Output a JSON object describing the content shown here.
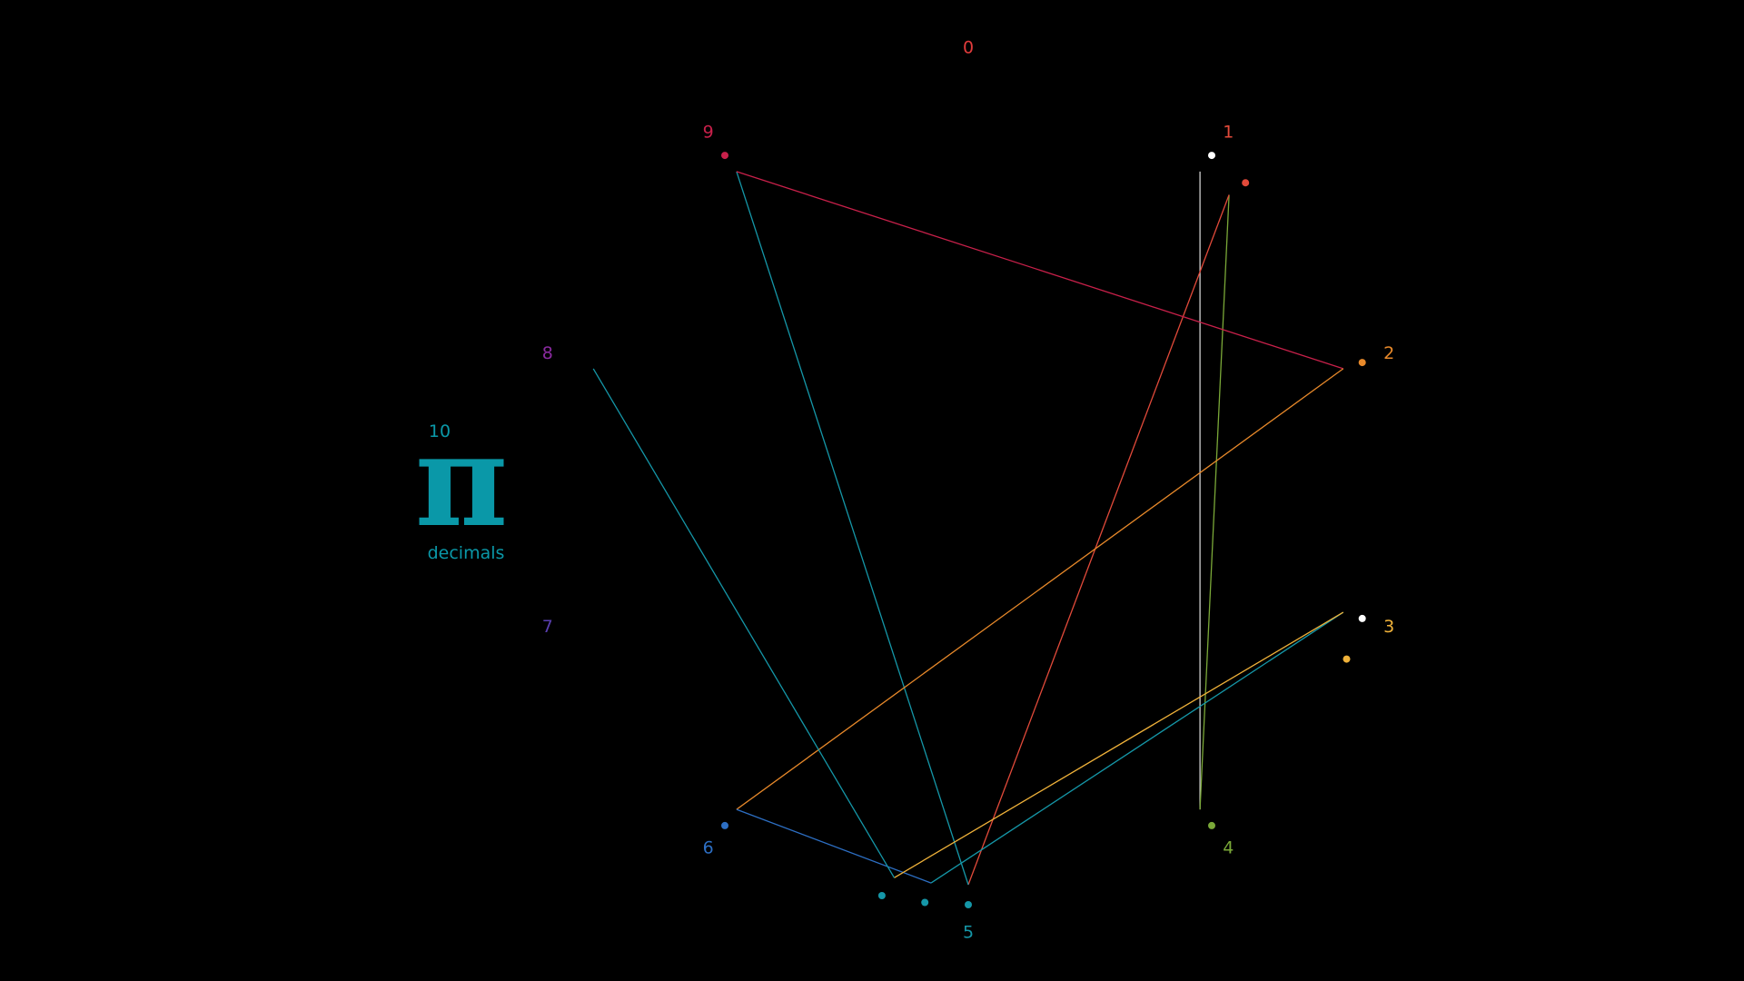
{
  "digit_labels": [
    {
      "text": "0",
      "color": "#e23b3b"
    },
    {
      "text": "1",
      "color": "#e24a3a"
    },
    {
      "text": "2",
      "color": "#e8892a"
    },
    {
      "text": "3",
      "color": "#f0b23a"
    },
    {
      "text": "4",
      "color": "#7aa838"
    },
    {
      "text": "5",
      "color": "#1597a8"
    },
    {
      "text": "6",
      "color": "#2d6fc4"
    },
    {
      "text": "7",
      "color": "#5a3fb0"
    },
    {
      "text": "8",
      "color": "#8a2aa0"
    },
    {
      "text": "9",
      "color": "#c8204a"
    }
  ],
  "pi_symbol": "π",
  "decimal_count": "10",
  "caption": "decimals",
  "accent_color": "#0a98a8",
  "sequence": [
    {
      "digit": 3,
      "color": "#ffffff"
    },
    {
      "digit": 1,
      "color": "#ffffff"
    },
    {
      "digit": 4,
      "color": "#7aa838"
    },
    {
      "digit": 1,
      "color": "#e24a3a"
    },
    {
      "digit": 5,
      "color": "#1597a8"
    },
    {
      "digit": 9,
      "color": "#c8204a"
    },
    {
      "digit": 2,
      "color": "#e8892a"
    },
    {
      "digit": 6,
      "color": "#2d6fc4"
    },
    {
      "digit": 5,
      "color": "#1597a8"
    },
    {
      "digit": 3,
      "color": "#f0b23a"
    },
    {
      "digit": 5,
      "color": "#1597a8"
    }
  ],
  "segments": [
    {
      "from": 1,
      "to": 4,
      "color": "#cfcfcf"
    },
    {
      "from": 4,
      "to": 1,
      "color": "#7aa838"
    },
    {
      "from": 1,
      "to": 5,
      "color": "#e24a3a"
    },
    {
      "from": 5,
      "to": 9,
      "color": "#1597a8"
    },
    {
      "from": 9,
      "to": 2,
      "color": "#c8204a"
    },
    {
      "from": 2,
      "to": 6,
      "color": "#e8892a"
    },
    {
      "from": 6,
      "to": 5,
      "color": "#2d6fc4"
    },
    {
      "from": 5,
      "to": 3,
      "color": "#1597a8"
    },
    {
      "from": 3,
      "to": 5,
      "color": "#f0b23a"
    },
    {
      "from": 5,
      "to": 8,
      "color": "#1597a8"
    }
  ]
}
